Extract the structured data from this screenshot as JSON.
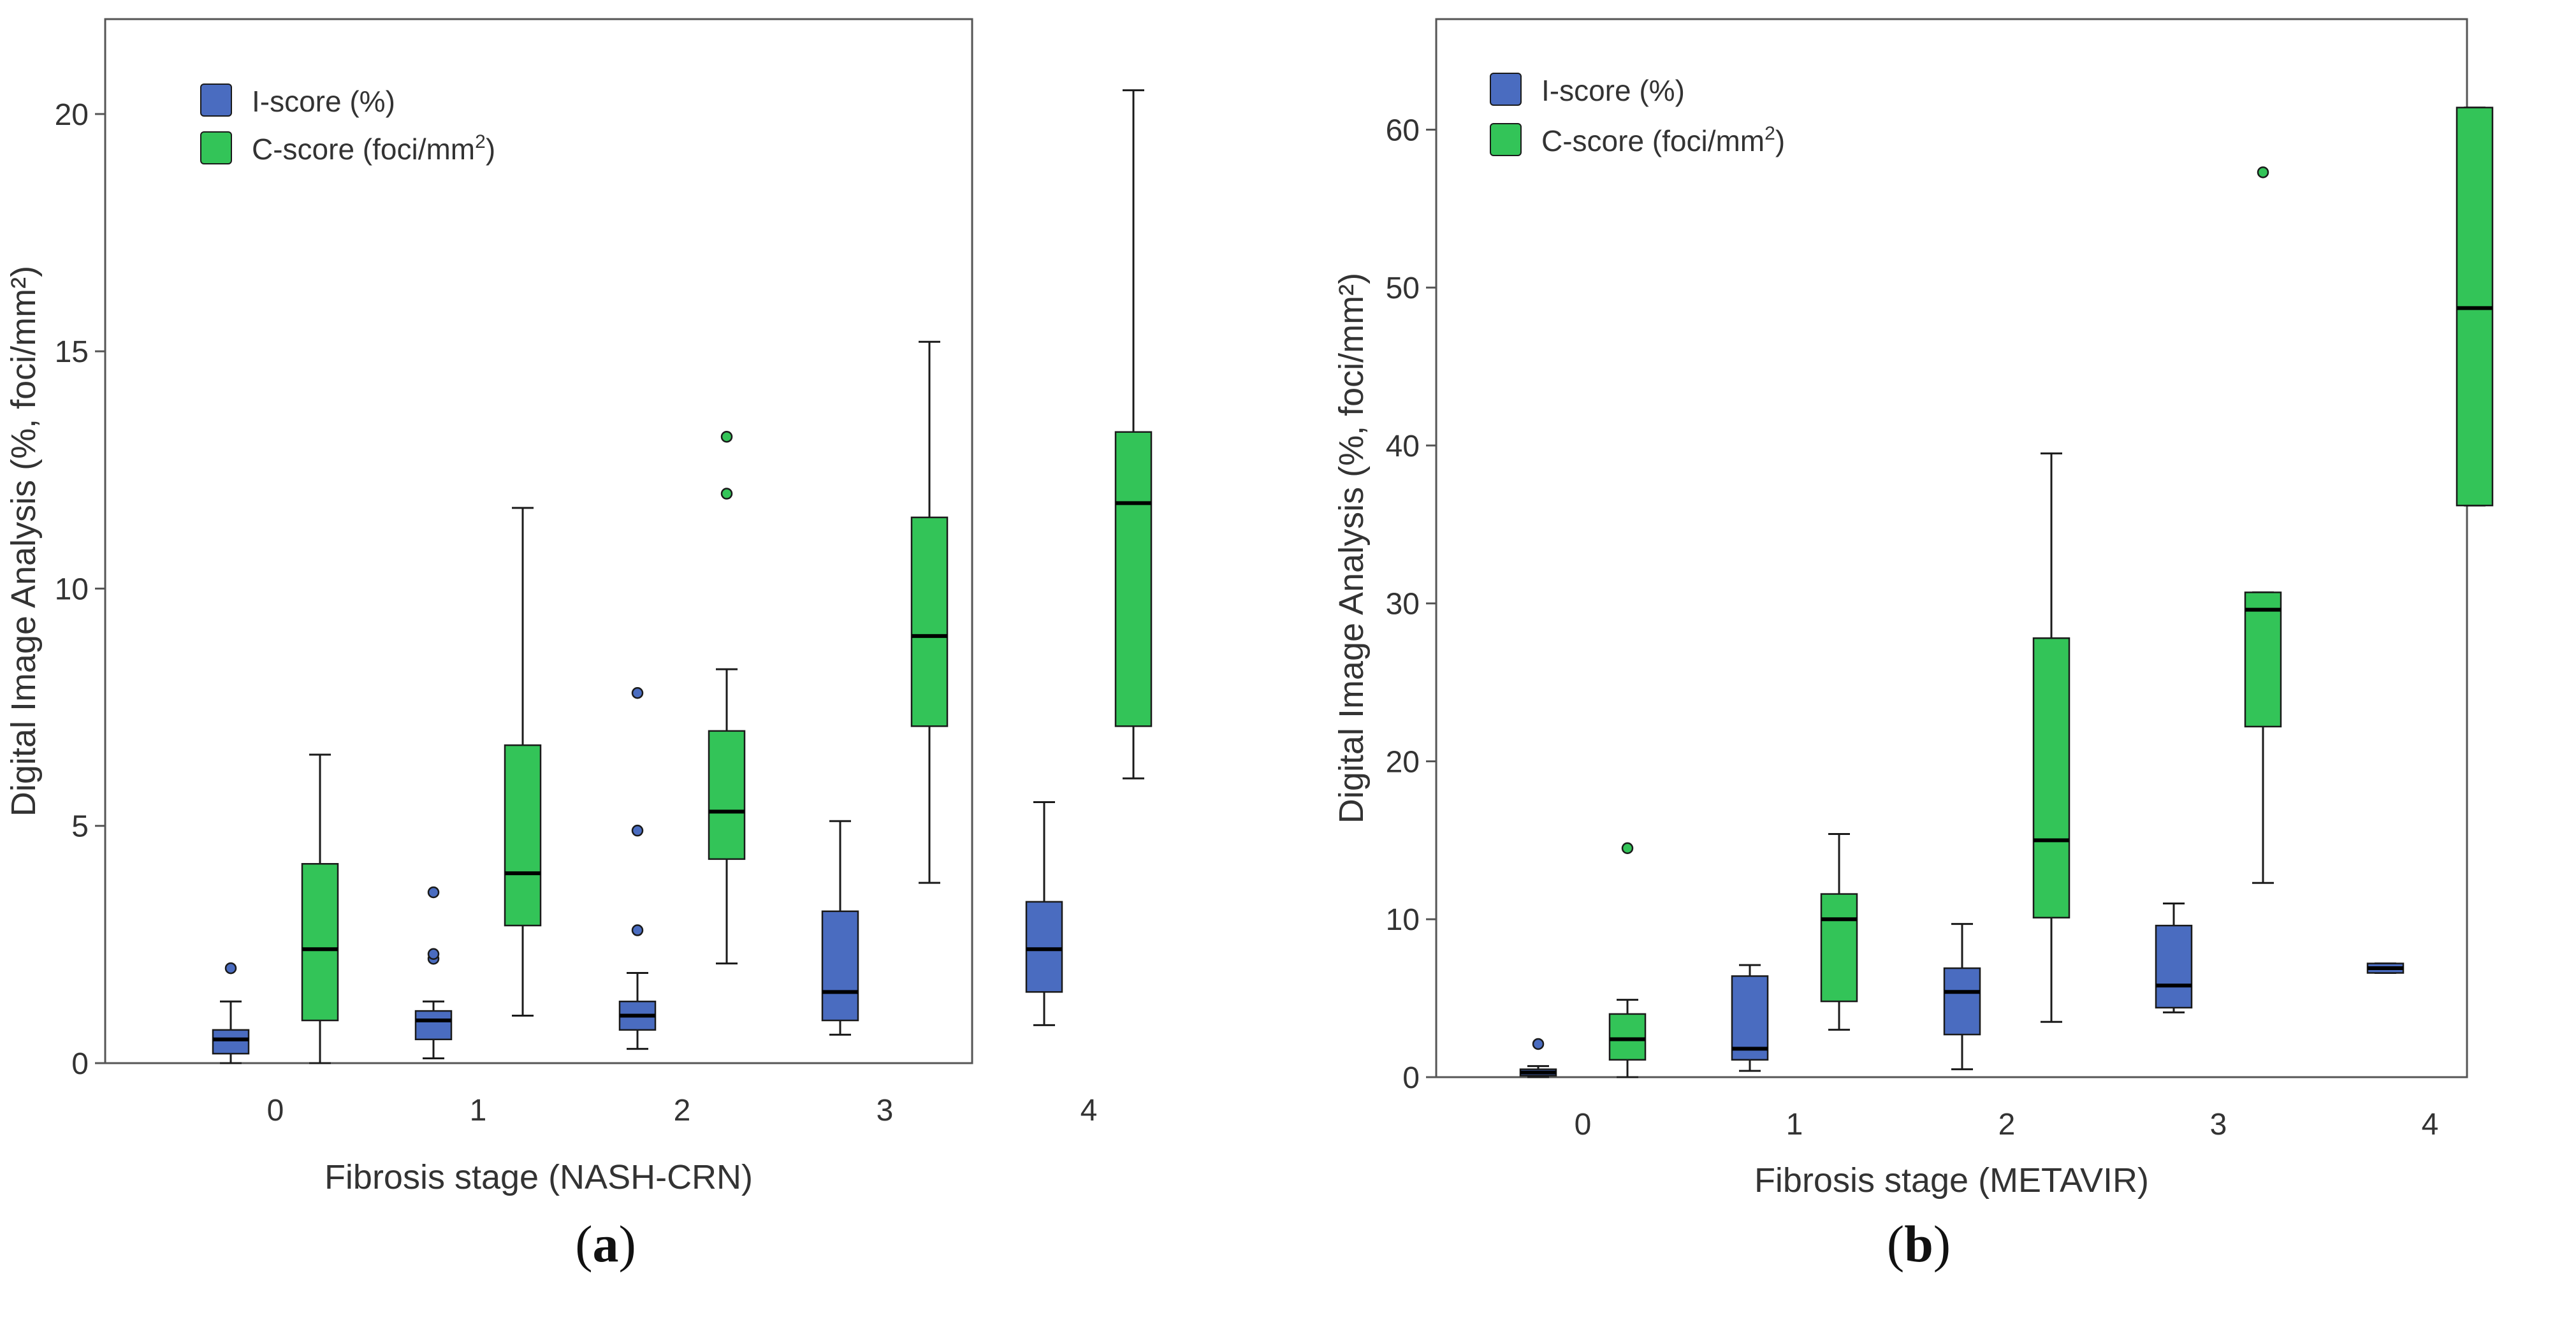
{
  "figure": {
    "panels": [
      {
        "label_open": "(",
        "label_letter": "a",
        "label_close": ")"
      },
      {
        "label_open": "(",
        "label_letter": "b",
        "label_close": ")"
      }
    ]
  },
  "colors": {
    "i_score": "#4a6cc0",
    "c_score": "#33c458",
    "outline": "#1a1a1a",
    "axis": "#555555"
  },
  "chart_data": [
    {
      "type": "box",
      "title": "",
      "xlabel": "Fibrosis stage (NASH-CRN)",
      "ylabel": "Digital Image Analysis (%, foci/mm²)",
      "ylim": [
        0,
        22
      ],
      "yticks": [
        0,
        5,
        10,
        15,
        20
      ],
      "categories": [
        "0",
        "1",
        "2",
        "3",
        "4"
      ],
      "legend_position": "top-left",
      "series": [
        {
          "name": "I-score (%)",
          "legend_text": "I-score (%)",
          "color_key": "i_score",
          "boxes": [
            {
              "whisker_low": 0.0,
              "q1": 0.2,
              "median": 0.5,
              "q3": 0.7,
              "whisker_high": 1.3,
              "outliers": [
                2.0
              ]
            },
            {
              "whisker_low": 0.1,
              "q1": 0.5,
              "median": 0.9,
              "q3": 1.1,
              "whisker_high": 1.3,
              "outliers": [
                2.2,
                2.3,
                3.6
              ]
            },
            {
              "whisker_low": 0.3,
              "q1": 0.7,
              "median": 1.0,
              "q3": 1.3,
              "whisker_high": 1.9,
              "outliers": [
                2.8,
                4.9,
                7.8
              ]
            },
            {
              "whisker_low": 0.6,
              "q1": 0.9,
              "median": 1.5,
              "q3": 3.2,
              "whisker_high": 5.1,
              "outliers": []
            },
            {
              "whisker_low": 0.8,
              "q1": 1.5,
              "median": 2.4,
              "q3": 3.4,
              "whisker_high": 5.5,
              "outliers": []
            }
          ]
        },
        {
          "name": "C-score (foci/mm2)",
          "legend_text": "C-score (foci/mm",
          "legend_sup": "2",
          "legend_close": ")",
          "color_key": "c_score",
          "boxes": [
            {
              "whisker_low": 0.0,
              "q1": 0.9,
              "median": 2.4,
              "q3": 4.2,
              "whisker_high": 6.5,
              "outliers": []
            },
            {
              "whisker_low": 1.0,
              "q1": 2.9,
              "median": 4.0,
              "q3": 6.7,
              "whisker_high": 11.7,
              "outliers": []
            },
            {
              "whisker_low": 2.1,
              "q1": 4.3,
              "median": 5.3,
              "q3": 7.0,
              "whisker_high": 8.3,
              "outliers": [
                12.0,
                13.2
              ]
            },
            {
              "whisker_low": 3.8,
              "q1": 7.1,
              "median": 9.0,
              "q3": 11.5,
              "whisker_high": 15.2,
              "outliers": []
            },
            {
              "whisker_low": 6.0,
              "q1": 7.1,
              "median": 11.8,
              "q3": 13.3,
              "whisker_high": 20.5,
              "outliers": []
            }
          ]
        }
      ]
    },
    {
      "type": "box",
      "title": "",
      "xlabel": "Fibrosis stage (METAVIR)",
      "ylabel": "Digital Image Analysis (%, foci/mm²)",
      "ylim": [
        0,
        67
      ],
      "yticks": [
        0,
        10,
        20,
        30,
        40,
        50,
        60
      ],
      "categories": [
        "0",
        "1",
        "2",
        "3",
        "4"
      ],
      "legend_position": "top-left",
      "series": [
        {
          "name": "I-score (%)",
          "legend_text": "I-score (%)",
          "color_key": "i_score",
          "boxes": [
            {
              "whisker_low": 0.0,
              "q1": 0.1,
              "median": 0.3,
              "q3": 0.5,
              "whisker_high": 0.7,
              "outliers": [
                2.1
              ]
            },
            {
              "whisker_low": 0.4,
              "q1": 1.1,
              "median": 1.8,
              "q3": 6.4,
              "whisker_high": 7.1,
              "outliers": []
            },
            {
              "whisker_low": 0.5,
              "q1": 2.7,
              "median": 5.4,
              "q3": 6.9,
              "whisker_high": 9.7,
              "outliers": []
            },
            {
              "whisker_low": 4.1,
              "q1": 4.4,
              "median": 5.8,
              "q3": 9.6,
              "whisker_high": 11.0,
              "outliers": []
            },
            {
              "whisker_low": 6.6,
              "q1": 6.6,
              "median": 6.9,
              "q3": 7.2,
              "whisker_high": 7.2,
              "outliers": []
            }
          ]
        },
        {
          "name": "C-score (foci/mm2)",
          "legend_text": "C-score (foci/mm",
          "legend_sup": "2",
          "legend_close": ")",
          "color_key": "c_score",
          "boxes": [
            {
              "whisker_low": 0.0,
              "q1": 1.1,
              "median": 2.4,
              "q3": 4.0,
              "whisker_high": 4.9,
              "outliers": [
                14.5
              ]
            },
            {
              "whisker_low": 3.0,
              "q1": 4.8,
              "median": 10.0,
              "q3": 11.6,
              "whisker_high": 15.4,
              "outliers": []
            },
            {
              "whisker_low": 3.5,
              "q1": 10.1,
              "median": 15.0,
              "q3": 27.8,
              "whisker_high": 39.5,
              "outliers": []
            },
            {
              "whisker_low": 12.3,
              "q1": 22.2,
              "median": 29.6,
              "q3": 30.7,
              "whisker_high": 30.7,
              "outliers": [
                57.3
              ]
            },
            {
              "whisker_low": 36.2,
              "q1": 36.2,
              "median": 48.7,
              "q3": 61.4,
              "whisker_high": 61.4,
              "outliers": []
            }
          ]
        }
      ]
    }
  ]
}
